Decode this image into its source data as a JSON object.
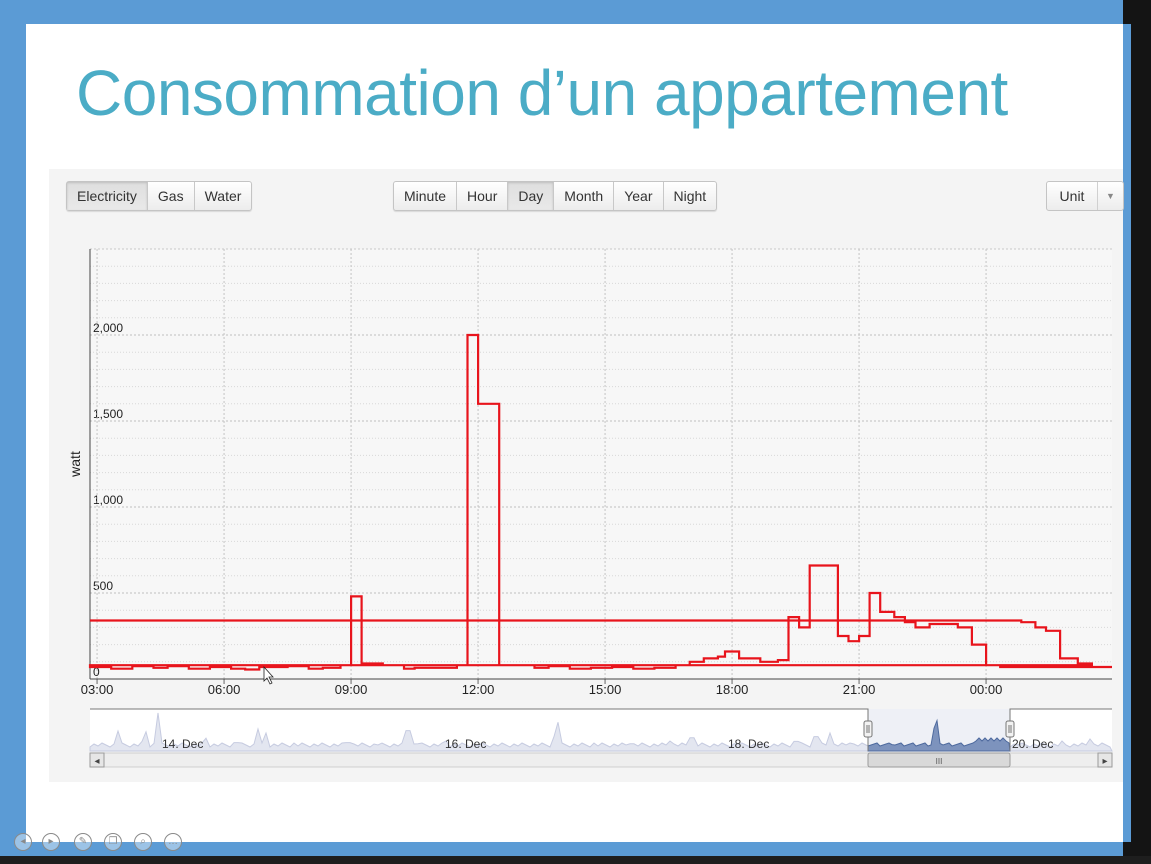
{
  "slide": {
    "title": "Consommation d’un appartement"
  },
  "toolbar": {
    "energy_tabs": [
      "Electricity",
      "Gas",
      "Water"
    ],
    "energy_active": "Electricity",
    "period_tabs": [
      "Minute",
      "Hour",
      "Day",
      "Month",
      "Year",
      "Night"
    ],
    "period_active": "Day",
    "unit_label": "Unit"
  },
  "chart_data": {
    "type": "line",
    "line_style": "step",
    "color": "#e8141c",
    "ylabel": "watt",
    "ylim": [
      0,
      2400
    ],
    "y_ticks": [
      "0",
      "500",
      "1,000",
      "1,500",
      "2,000"
    ],
    "y_tick_values": [
      0,
      500,
      1000,
      1500,
      2000
    ],
    "x_ticks": [
      "03:00",
      "06:00",
      "09:00",
      "12:00",
      "15:00",
      "18:00",
      "21:00",
      "00:00"
    ],
    "grid": true,
    "series": [
      {
        "x": [
          "00:10",
          "00:50",
          "01:10",
          "01:25",
          "01:45",
          "02:10",
          "02:30",
          "02:50",
          "03:20",
          "03:50",
          "04:20",
          "04:40",
          "05:10",
          "05:40",
          "06:10",
          "06:30",
          "06:50",
          "07:30",
          "08:00",
          "08:20",
          "08:45",
          "09:00",
          "09:15",
          "09:45",
          "10:15",
          "10:30",
          "11:10",
          "11:30",
          "11:45",
          "12:00",
          "12:30",
          "13:20",
          "13:40",
          "14:10",
          "14:40",
          "15:10",
          "15:40",
          "16:10",
          "16:40",
          "17:00",
          "17:20",
          "17:40",
          "17:50",
          "18:10",
          "18:40",
          "19:05",
          "19:20",
          "19:35",
          "19:50",
          "20:30",
          "20:45",
          "21:00",
          "21:15",
          "21:30",
          "21:50",
          "22:05",
          "22:20",
          "22:40",
          "23:05",
          "23:20",
          "23:40",
          "00:00",
          "00:20"
        ],
        "y": [
          340,
          330,
          300,
          280,
          120,
          90,
          80,
          70,
          60,
          75,
          65,
          75,
          60,
          70,
          60,
          55,
          70,
          75,
          60,
          65,
          80,
          480,
          90,
          80,
          60,
          65,
          65,
          80,
          2000,
          1600,
          80,
          65,
          75,
          60,
          65,
          70,
          60,
          65,
          80,
          100,
          120,
          130,
          160,
          120,
          100,
          110,
          360,
          300,
          660,
          250,
          220,
          250,
          500,
          390,
          360,
          330,
          300,
          320,
          320,
          300,
          200,
          80,
          70
        ]
      }
    ]
  },
  "navigator": {
    "labels": [
      "14. Dec",
      "16. Dec",
      "18. Dec",
      "20. Dec"
    ],
    "handle_glyph": "III",
    "left_arrow": "◂",
    "right_arrow": "▸"
  },
  "slide_controls": [
    "◂",
    "▸",
    "✎",
    "❐",
    "⌕",
    "…"
  ]
}
